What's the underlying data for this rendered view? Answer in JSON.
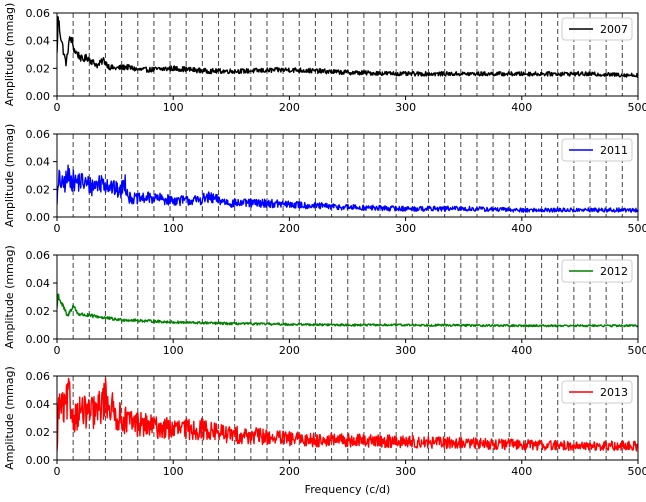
{
  "chart_data": [
    {
      "type": "line",
      "series": [
        {
          "name": "2007",
          "color": "#000000",
          "base": 0.018,
          "noise": 0.0025,
          "x": [
            0,
            1,
            2,
            4,
            6,
            8,
            10,
            12,
            15,
            18,
            22,
            26,
            30,
            35,
            40,
            45,
            50,
            60,
            70,
            80,
            100,
            130,
            160,
            200,
            250,
            300,
            350,
            400,
            450,
            500
          ],
          "y": [
            0.03,
            0.057,
            0.05,
            0.04,
            0.03,
            0.023,
            0.038,
            0.042,
            0.033,
            0.03,
            0.026,
            0.028,
            0.025,
            0.022,
            0.026,
            0.021,
            0.02,
            0.021,
            0.019,
            0.019,
            0.02,
            0.018,
            0.018,
            0.019,
            0.017,
            0.016,
            0.016,
            0.016,
            0.016,
            0.015
          ]
        }
      ],
      "ylabel": "Amplitude (mmag)",
      "xlim": [
        0,
        500
      ],
      "ylim": [
        0,
        0.06
      ],
      "xticks": [
        "0",
        "100",
        "200",
        "300",
        "400",
        "500"
      ],
      "yticks": [
        "0.00",
        "0.02",
        "0.04",
        "0.06"
      ],
      "legend": "top-right"
    },
    {
      "type": "line",
      "series": [
        {
          "name": "2011",
          "color": "#0000ff",
          "base": 0.008,
          "noise": 0.0035,
          "x": [
            0,
            2,
            5,
            10,
            15,
            20,
            30,
            40,
            50,
            55,
            58,
            62,
            70,
            80,
            100,
            120,
            130,
            150,
            180,
            200,
            250,
            300,
            350,
            400,
            450,
            500
          ],
          "y": [
            0.012,
            0.028,
            0.022,
            0.03,
            0.025,
            0.026,
            0.022,
            0.026,
            0.02,
            0.018,
            0.027,
            0.014,
            0.013,
            0.014,
            0.012,
            0.012,
            0.014,
            0.01,
            0.01,
            0.009,
            0.007,
            0.006,
            0.006,
            0.005,
            0.005,
            0.005
          ]
        }
      ],
      "ylabel": "Amplitude (mmag)",
      "xlim": [
        0,
        500
      ],
      "ylim": [
        0,
        0.06
      ],
      "xticks": [
        "0",
        "100",
        "200",
        "300",
        "400",
        "500"
      ],
      "yticks": [
        "0.00",
        "0.02",
        "0.04",
        "0.06"
      ],
      "legend": "top-right"
    },
    {
      "type": "line",
      "series": [
        {
          "name": "2012",
          "color": "#008000",
          "base": 0.011,
          "noise": 0.0012,
          "x": [
            0,
            1,
            3,
            6,
            9,
            12,
            14,
            18,
            25,
            35,
            50,
            75,
            100,
            150,
            200,
            250,
            300,
            400,
            500
          ],
          "y": [
            0.022,
            0.032,
            0.027,
            0.022,
            0.016,
            0.021,
            0.024,
            0.018,
            0.017,
            0.016,
            0.014,
            0.013,
            0.012,
            0.011,
            0.0105,
            0.01,
            0.01,
            0.0095,
            0.0095
          ]
        }
      ],
      "ylabel": "Amplitude (mmag)",
      "xlim": [
        0,
        500
      ],
      "ylim": [
        0,
        0.06
      ],
      "xticks": [
        "0",
        "100",
        "200",
        "300",
        "400",
        "500"
      ],
      "yticks": [
        "0.00",
        "0.02",
        "0.04",
        "0.06"
      ],
      "legend": "top-right"
    },
    {
      "type": "line",
      "series": [
        {
          "name": "2013",
          "color": "#ff0000",
          "base": 0.012,
          "noise": 0.006,
          "x": [
            0,
            1,
            3,
            6,
            10,
            14,
            20,
            28,
            35,
            42,
            50,
            60,
            70,
            80,
            100,
            125,
            150,
            175,
            200,
            250,
            300,
            350,
            400,
            450,
            500
          ],
          "y": [
            0.005,
            0.035,
            0.04,
            0.034,
            0.045,
            0.03,
            0.035,
            0.033,
            0.035,
            0.045,
            0.032,
            0.028,
            0.026,
            0.024,
            0.022,
            0.022,
            0.018,
            0.017,
            0.015,
            0.014,
            0.013,
            0.012,
            0.011,
            0.01,
            0.01
          ]
        }
      ],
      "ylabel": "Amplitude (mmag)",
      "xlabel": "Frequency (c/d)",
      "xlim": [
        0,
        500
      ],
      "ylim": [
        0,
        0.06
      ],
      "xticks": [
        "0",
        "100",
        "200",
        "300",
        "400",
        "500"
      ],
      "yticks": [
        "0.00",
        "0.02",
        "0.04",
        "0.06"
      ],
      "legend": "top-right"
    }
  ],
  "harmonic_lines": [
    13.9,
    27.8,
    41.7,
    55.6,
    69.5,
    83.4,
    97.3,
    111.2,
    125.1,
    139,
    152.9,
    166.8,
    180.7,
    194.6,
    208.5,
    222.4,
    236.3,
    250.2,
    264.1,
    278,
    291.9,
    305.8,
    319.7,
    333.6,
    347.5,
    361.4,
    375.3,
    389.2,
    403.1,
    417,
    430.9,
    444.8,
    458.7,
    472.6,
    486.5
  ]
}
